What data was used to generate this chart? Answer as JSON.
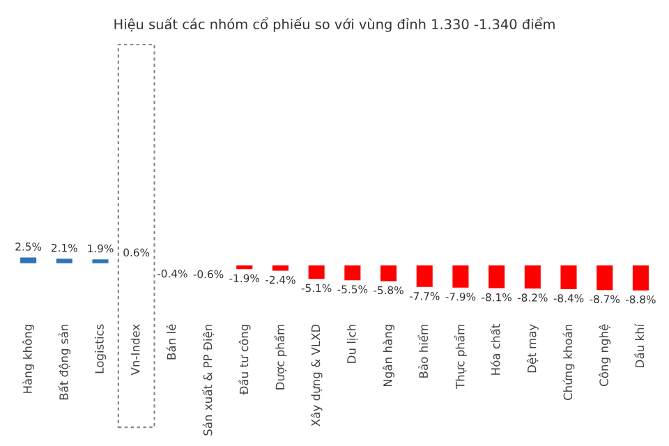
{
  "chart_data": {
    "type": "bar",
    "title": "Hiệu suất các nhóm cổ phiếu so với vùng đỉnh 1.330 -1.340 điểm",
    "categories": [
      "Hàng không",
      "Bất động sản",
      "Logistics",
      "Vn-Index",
      "Bán lẻ",
      "Sản xuất & PP Điện",
      "Đầu tư công",
      "Dược phẩm",
      "Xây dựng & VLXD",
      "Du lịch",
      "Ngân hàng",
      "Bảo hiểm",
      "Thực phẩm",
      "Hóa chất",
      "Dệt may",
      "Chứng khoán",
      "Công nghệ",
      "Dầu khí"
    ],
    "values": [
      2.5,
      2.1,
      1.9,
      0.6,
      -0.4,
      -0.6,
      -1.9,
      -2.4,
      -5.1,
      -5.5,
      -5.8,
      -7.7,
      -7.9,
      -8.1,
      -8.2,
      -8.4,
      -8.7,
      -8.8
    ],
    "colors": [
      "#2e75b6",
      "#2e75b6",
      "#2e75b6",
      "#2e75b6",
      "#ff0000",
      "#ff0000",
      "#ff0000",
      "#ff0000",
      "#ff0000",
      "#ff0000",
      "#ff0000",
      "#ff0000",
      "#ff0000",
      "#ff0000",
      "#ff0000",
      "#ff0000",
      "#ff0000",
      "#ff0000"
    ],
    "value_labels": [
      "2.5%",
      "2.1%",
      "1.9%",
      "0.6%",
      "-0.4%",
      "-0.6%",
      "-1.9%",
      "-2.4%",
      "-5.1%",
      "-5.5%",
      "-5.8%",
      "-7.7%",
      "-7.9%",
      "-8.1%",
      "-8.2%",
      "-8.4%",
      "-8.7%",
      "-8.8%"
    ],
    "tick_labels": "x"
  }
}
